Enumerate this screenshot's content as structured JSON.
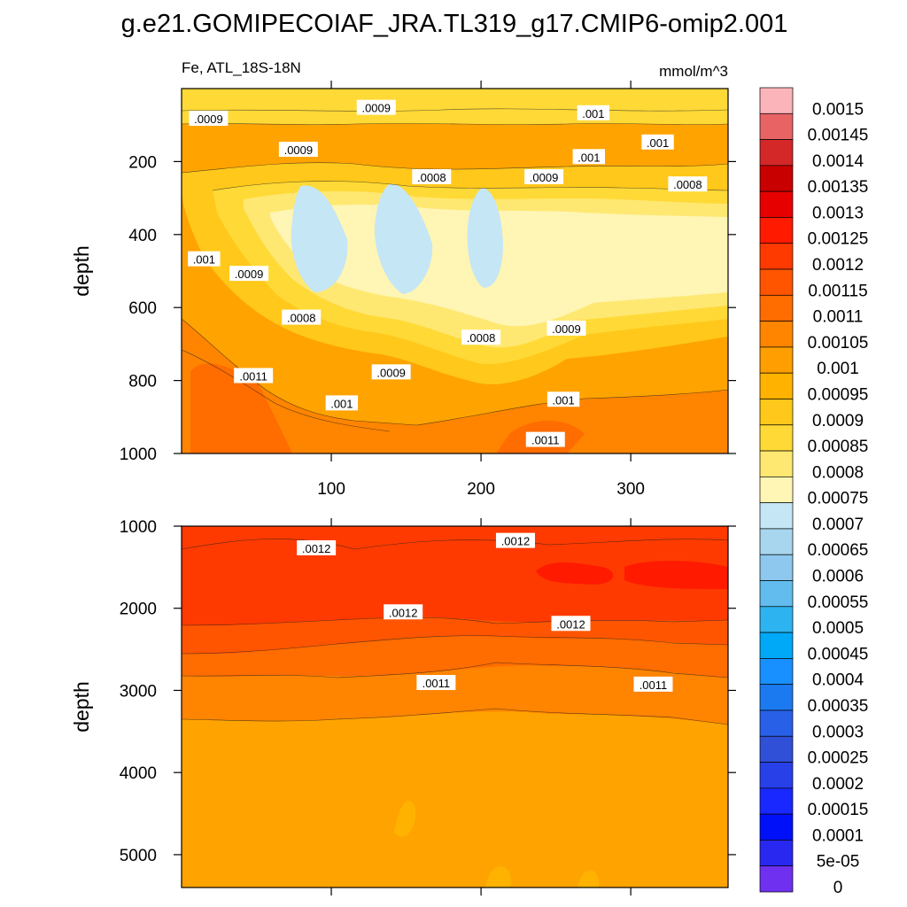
{
  "chart_data": {
    "type": "heatmap",
    "title": "g.e21.GOMIPECOIAF_JRA.TL319_g17.CMIP6-omip2.001",
    "left_subtitle": "Fe, ATL_18S-18N",
    "right_subtitle": "mmol/m^3",
    "xlim": [
      0,
      365
    ],
    "x_ticks": [
      100,
      200,
      300
    ],
    "x_tick_labels": [
      "100",
      "200",
      "300"
    ],
    "upper_panel": {
      "ylabel": "depth",
      "ylim": [
        0,
        1000
      ],
      "y_ticks": [
        200,
        400,
        600,
        800,
        1000
      ],
      "y_tick_labels": [
        "200",
        "400",
        "600",
        "800",
        "1000"
      ],
      "contour_labels": [
        {
          "text": ".0009",
          "x": 18,
          "y": 85
        },
        {
          "text": ".0009",
          "x": 130,
          "y": 55
        },
        {
          "text": ".001",
          "x": 275,
          "y": 70
        },
        {
          "text": ".001",
          "x": 318,
          "y": 150
        },
        {
          "text": ".0009",
          "x": 78,
          "y": 170
        },
        {
          "text": ".001",
          "x": 272,
          "y": 190
        },
        {
          "text": ".0008",
          "x": 167,
          "y": 245
        },
        {
          "text": ".0009",
          "x": 242,
          "y": 245
        },
        {
          "text": ".0008",
          "x": 338,
          "y": 265
        },
        {
          "text": ".001",
          "x": 15,
          "y": 470
        },
        {
          "text": ".0009",
          "x": 45,
          "y": 510
        },
        {
          "text": ".0008",
          "x": 80,
          "y": 630
        },
        {
          "text": ".0008",
          "x": 200,
          "y": 685
        },
        {
          "text": ".0009",
          "x": 257,
          "y": 660
        },
        {
          "text": ".0011",
          "x": 48,
          "y": 790
        },
        {
          "text": ".0009",
          "x": 140,
          "y": 780
        },
        {
          "text": ".001",
          "x": 107,
          "y": 865
        },
        {
          "text": ".001",
          "x": 255,
          "y": 855
        },
        {
          "text": ".0011",
          "x": 243,
          "y": 965
        }
      ]
    },
    "lower_panel": {
      "ylabel": "depth",
      "ylim": [
        1000,
        5400
      ],
      "y_ticks": [
        1000,
        2000,
        3000,
        4000,
        5000
      ],
      "y_tick_labels": [
        "1000",
        "2000",
        "3000",
        "4000",
        "5000"
      ],
      "contour_labels": [
        {
          "text": ".0012",
          "x": 90,
          "y": 1280
        },
        {
          "text": ".0012",
          "x": 223,
          "y": 1190
        },
        {
          "text": ".0012",
          "x": 148,
          "y": 2060
        },
        {
          "text": ".0012",
          "x": 260,
          "y": 2200
        },
        {
          "text": ".0011",
          "x": 170,
          "y": 2920
        },
        {
          "text": ".0011",
          "x": 315,
          "y": 2940
        }
      ]
    },
    "colorbar": {
      "levels": [
        "0.0015",
        "0.00145",
        "0.0014",
        "0.00135",
        "0.0013",
        "0.00125",
        "0.0012",
        "0.00115",
        "0.0011",
        "0.00105",
        "0.001",
        "0.00095",
        "0.0009",
        "0.00085",
        "0.0008",
        "0.00075",
        "0.0007",
        "0.00065",
        "0.0006",
        "0.00055",
        "0.0005",
        "0.00045",
        "0.0004",
        "0.00035",
        "0.0003",
        "0.00025",
        "0.0002",
        "0.00015",
        "0.0001",
        "5e-05",
        "0"
      ],
      "colors": [
        "#fbb4b9",
        "#e86464",
        "#d42727",
        "#c80000",
        "#e60000",
        "#ff1a00",
        "#ff3a00",
        "#ff5500",
        "#ff6c00",
        "#ff8400",
        "#ff9e00",
        "#ffb300",
        "#ffc81a",
        "#ffd936",
        "#ffe871",
        "#fff5b4",
        "#c4e6f5",
        "#a8d6ef",
        "#8ec8ee",
        "#62bdee",
        "#2db4f0",
        "#00a8f8",
        "#1890ff",
        "#1c7af0",
        "#2860e8",
        "#3050d8",
        "#2840e8",
        "#1828ff",
        "#0010f8",
        "#2828f0",
        "#7030f0"
      ]
    },
    "upper_fill": {
      "background": "#ffa300",
      "bands": [
        "#ffc81a",
        "#ffd936",
        "#ffe871",
        "#fff5b4",
        "#c4e6f5"
      ],
      "surface": "#ffd936",
      "deep": "#ff8400",
      "deep2": "#ff6c00"
    },
    "lower_fill": {
      "top": "#ff3a00",
      "top_max": "#ff1a00",
      "mid": "#ff5500",
      "mid2": "#ff6c00",
      "mid3": "#ff8400",
      "bottom": "#ffa300",
      "patch": "#ffb300"
    }
  }
}
